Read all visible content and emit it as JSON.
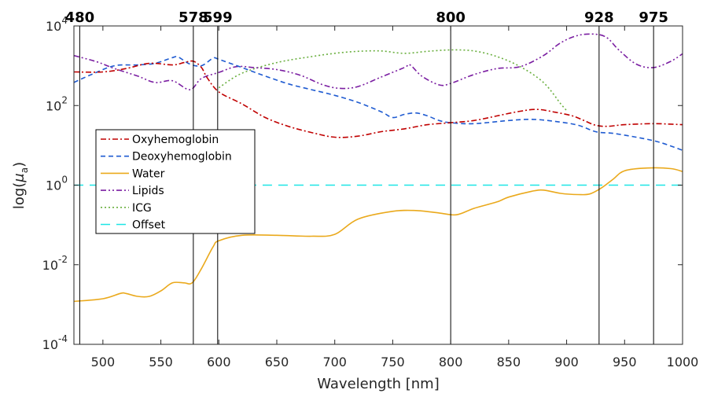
{
  "chart_data": {
    "type": "line",
    "title": "",
    "xlabel": "Wavelength [nm]",
    "ylabel": "log(μ_a)",
    "ylabel_base": "log(",
    "ylabel_mu": "μ",
    "ylabel_sub": "a",
    "ylabel_close": ")",
    "xscale": "linear",
    "yscale": "log",
    "xlim": [
      475,
      1000
    ],
    "ylim": [
      0.0001,
      10000
    ],
    "grid": false,
    "legend_position": "left-middle",
    "x_ticks": [
      500,
      550,
      600,
      650,
      700,
      750,
      800,
      850,
      900,
      950,
      1000
    ],
    "x_tick_labels": [
      "500",
      "550",
      "600",
      "650",
      "700",
      "750",
      "800",
      "850",
      "900",
      "950",
      "1000"
    ],
    "y_ticks": [
      {
        "value": 0.0001,
        "base": "10",
        "exp": "-4"
      },
      {
        "value": 0.01,
        "base": "10",
        "exp": "-2"
      },
      {
        "value": 1,
        "base": "10",
        "exp": "0"
      },
      {
        "value": 100,
        "base": "10",
        "exp": "2"
      },
      {
        "value": 10000,
        "base": "10",
        "exp": "4"
      }
    ],
    "vertical_markers": [
      {
        "x": 480,
        "label": "480"
      },
      {
        "x": 578,
        "label": "578"
      },
      {
        "x": 599,
        "label": "599"
      },
      {
        "x": 800,
        "label": "800"
      },
      {
        "x": 928,
        "label": "928"
      },
      {
        "x": 975,
        "label": "975"
      }
    ],
    "series": [
      {
        "name": "Oxyhemoglobin",
        "color": "#c00000",
        "dash": "dashdot",
        "points": [
          [
            475,
            700
          ],
          [
            500,
            700
          ],
          [
            520,
            850
          ],
          [
            540,
            1150
          ],
          [
            560,
            1050
          ],
          [
            570,
            1200
          ],
          [
            578,
            1300
          ],
          [
            585,
            900
          ],
          [
            590,
            500
          ],
          [
            600,
            220
          ],
          [
            620,
            110
          ],
          [
            640,
            50
          ],
          [
            660,
            30
          ],
          [
            680,
            21
          ],
          [
            700,
            16
          ],
          [
            720,
            17
          ],
          [
            740,
            22
          ],
          [
            760,
            26
          ],
          [
            780,
            33
          ],
          [
            800,
            37
          ],
          [
            820,
            42
          ],
          [
            840,
            55
          ],
          [
            860,
            72
          ],
          [
            875,
            80
          ],
          [
            890,
            68
          ],
          [
            905,
            55
          ],
          [
            915,
            42
          ],
          [
            925,
            32
          ],
          [
            935,
            30
          ],
          [
            950,
            33
          ],
          [
            975,
            35
          ],
          [
            1000,
            33
          ]
        ]
      },
      {
        "name": "Deoxyhemoglobin",
        "color": "#1f5bd1",
        "dash": "dash",
        "points": [
          [
            475,
            380
          ],
          [
            490,
            600
          ],
          [
            510,
            1000
          ],
          [
            530,
            1050
          ],
          [
            545,
            1150
          ],
          [
            560,
            1600
          ],
          [
            565,
            1650
          ],
          [
            575,
            1100
          ],
          [
            585,
            1000
          ],
          [
            595,
            1550
          ],
          [
            600,
            1450
          ],
          [
            620,
            900
          ],
          [
            640,
            550
          ],
          [
            660,
            350
          ],
          [
            680,
            250
          ],
          [
            700,
            180
          ],
          [
            720,
            120
          ],
          [
            740,
            70
          ],
          [
            750,
            50
          ],
          [
            760,
            60
          ],
          [
            770,
            65
          ],
          [
            780,
            55
          ],
          [
            790,
            42
          ],
          [
            800,
            37
          ],
          [
            820,
            35
          ],
          [
            850,
            42
          ],
          [
            870,
            45
          ],
          [
            890,
            40
          ],
          [
            910,
            32
          ],
          [
            925,
            22
          ],
          [
            940,
            20
          ],
          [
            960,
            16
          ],
          [
            980,
            12
          ],
          [
            1000,
            7.5
          ]
        ]
      },
      {
        "name": "Water",
        "color": "#eaa91c",
        "dash": "solid",
        "points": [
          [
            475,
            0.0012
          ],
          [
            500,
            0.0014
          ],
          [
            515,
            0.0019
          ],
          [
            520,
            0.0019
          ],
          [
            530,
            0.0016
          ],
          [
            540,
            0.0016
          ],
          [
            550,
            0.0022
          ],
          [
            560,
            0.0035
          ],
          [
            570,
            0.0035
          ],
          [
            577,
            0.0035
          ],
          [
            585,
            0.008
          ],
          [
            595,
            0.028
          ],
          [
            600,
            0.04
          ],
          [
            620,
            0.055
          ],
          [
            650,
            0.055
          ],
          [
            680,
            0.052
          ],
          [
            700,
            0.058
          ],
          [
            720,
            0.14
          ],
          [
            750,
            0.22
          ],
          [
            770,
            0.23
          ],
          [
            790,
            0.2
          ],
          [
            805,
            0.18
          ],
          [
            820,
            0.26
          ],
          [
            840,
            0.38
          ],
          [
            850,
            0.5
          ],
          [
            870,
            0.7
          ],
          [
            880,
            0.75
          ],
          [
            895,
            0.62
          ],
          [
            910,
            0.58
          ],
          [
            920,
            0.6
          ],
          [
            930,
            0.85
          ],
          [
            940,
            1.4
          ],
          [
            950,
            2.3
          ],
          [
            970,
            2.7
          ],
          [
            990,
            2.6
          ],
          [
            1000,
            2.2
          ]
        ]
      },
      {
        "name": "Lipids",
        "color": "#7b1fa2",
        "dash": "dashdotdot",
        "points": [
          [
            475,
            1800
          ],
          [
            495,
            1250
          ],
          [
            510,
            850
          ],
          [
            530,
            550
          ],
          [
            545,
            380
          ],
          [
            560,
            420
          ],
          [
            575,
            250
          ],
          [
            585,
            480
          ],
          [
            600,
            680
          ],
          [
            615,
            950
          ],
          [
            630,
            900
          ],
          [
            650,
            800
          ],
          [
            670,
            580
          ],
          [
            690,
            330
          ],
          [
            705,
            270
          ],
          [
            720,
            300
          ],
          [
            740,
            520
          ],
          [
            760,
            900
          ],
          [
            765,
            1050
          ],
          [
            775,
            550
          ],
          [
            790,
            330
          ],
          [
            800,
            360
          ],
          [
            820,
            600
          ],
          [
            840,
            850
          ],
          [
            860,
            950
          ],
          [
            880,
            1800
          ],
          [
            895,
            3800
          ],
          [
            910,
            5800
          ],
          [
            925,
            6200
          ],
          [
            935,
            5000
          ],
          [
            945,
            2500
          ],
          [
            960,
            1100
          ],
          [
            975,
            900
          ],
          [
            990,
            1300
          ],
          [
            1000,
            2000
          ]
        ]
      },
      {
        "name": "ICG",
        "color": "#6aaf3f",
        "dash": "dot",
        "points": [
          [
            600,
            280
          ],
          [
            620,
            650
          ],
          [
            650,
            1200
          ],
          [
            680,
            1700
          ],
          [
            700,
            2050
          ],
          [
            720,
            2300
          ],
          [
            740,
            2350
          ],
          [
            760,
            2050
          ],
          [
            780,
            2300
          ],
          [
            800,
            2500
          ],
          [
            820,
            2350
          ],
          [
            840,
            1700
          ],
          [
            860,
            950
          ],
          [
            880,
            380
          ],
          [
            895,
            110
          ],
          [
            900,
            75
          ]
        ]
      },
      {
        "name": "Offset",
        "color": "#1ee6e6",
        "dash": "longdash",
        "points": [
          [
            475,
            1
          ],
          [
            1000,
            1
          ]
        ]
      }
    ]
  }
}
